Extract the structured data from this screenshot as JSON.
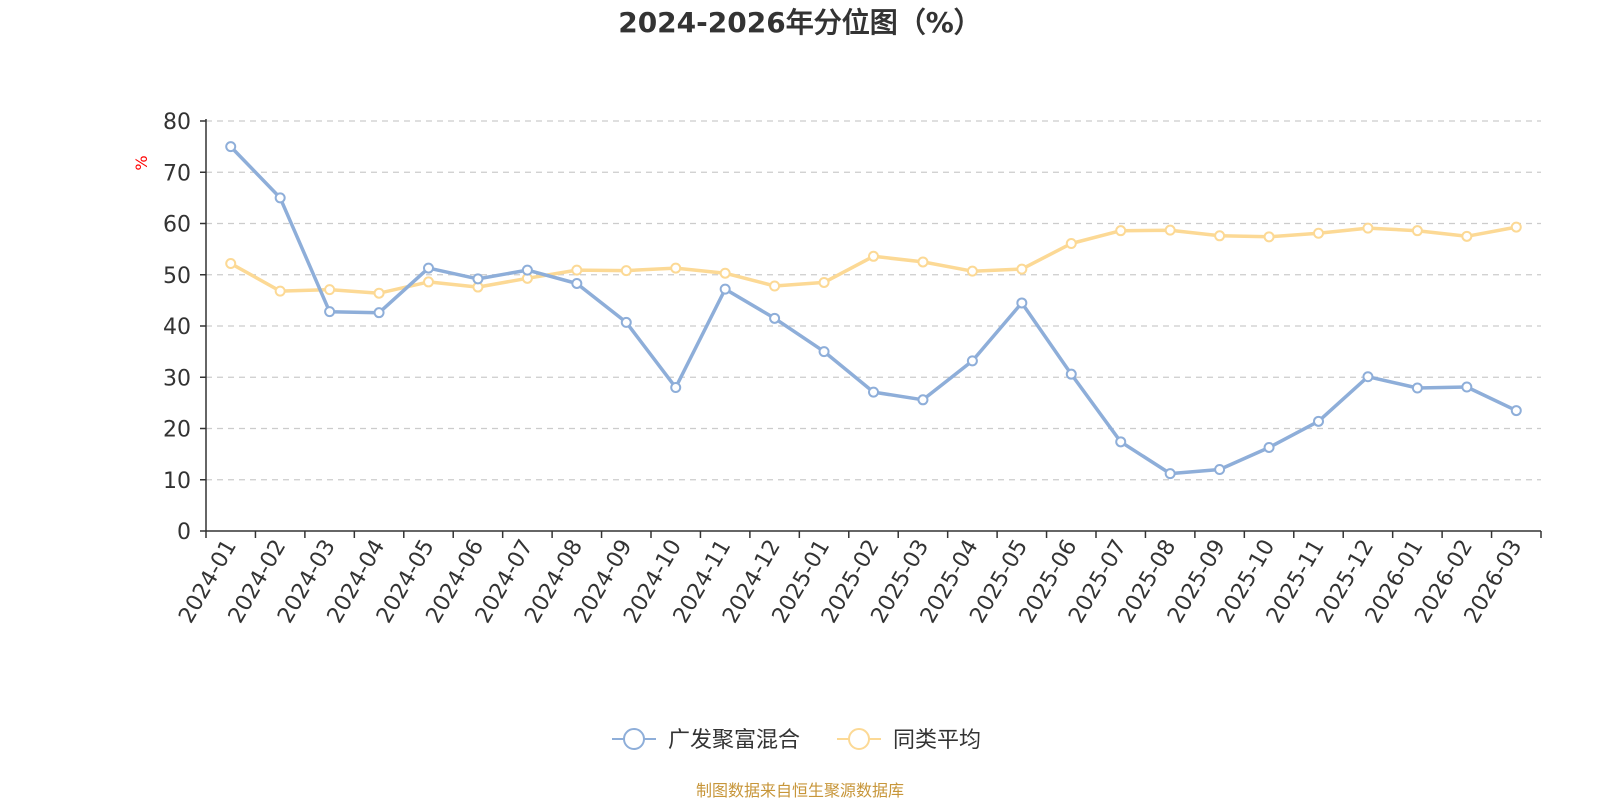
{
  "chart_data": {
    "type": "line",
    "title": "2024-2026年分位图（%）",
    "ylabel": "%",
    "ylim": [
      0,
      80
    ],
    "yticks": [
      0,
      10,
      20,
      30,
      40,
      50,
      60,
      70,
      80
    ],
    "grid": true,
    "legend_position": "bottom-center",
    "categories": [
      "2024-01",
      "2024-02",
      "2024-03",
      "2024-04",
      "2024-05",
      "2024-06",
      "2024-07",
      "2024-08",
      "2024-09",
      "2024-10",
      "2024-11",
      "2024-12",
      "2025-01",
      "2025-02",
      "2025-03",
      "2025-04",
      "2025-05",
      "2025-06",
      "2025-07",
      "2025-08",
      "2025-09",
      "2025-10",
      "2025-11",
      "2025-12",
      "2026-01",
      "2026-02",
      "2026-03"
    ],
    "series": [
      {
        "name": "广发聚富混合",
        "color": "#8eaed9",
        "values": [
          75.0,
          65.0,
          42.8,
          42.6,
          51.3,
          49.2,
          50.9,
          48.3,
          40.7,
          28.0,
          47.2,
          41.5,
          35.0,
          27.1,
          25.6,
          33.2,
          44.5,
          30.6,
          17.4,
          11.2,
          12.0,
          16.3,
          21.4,
          30.1,
          27.9,
          28.1,
          23.5
        ]
      },
      {
        "name": "同类平均",
        "color": "#fcd995",
        "values": [
          52.2,
          46.8,
          47.1,
          46.4,
          48.6,
          47.6,
          49.3,
          50.9,
          50.8,
          51.3,
          50.3,
          47.8,
          48.5,
          53.6,
          52.5,
          50.7,
          51.1,
          56.1,
          58.6,
          58.7,
          57.6,
          57.4,
          58.1,
          59.1,
          58.6,
          57.5,
          59.3
        ]
      }
    ],
    "source": "制图数据来自恒生聚源数据库",
    "source_color": "#c7963a",
    "ylabel_color": "#ff0000",
    "axis_color": "#333333",
    "grid_color": "#cccccc"
  }
}
